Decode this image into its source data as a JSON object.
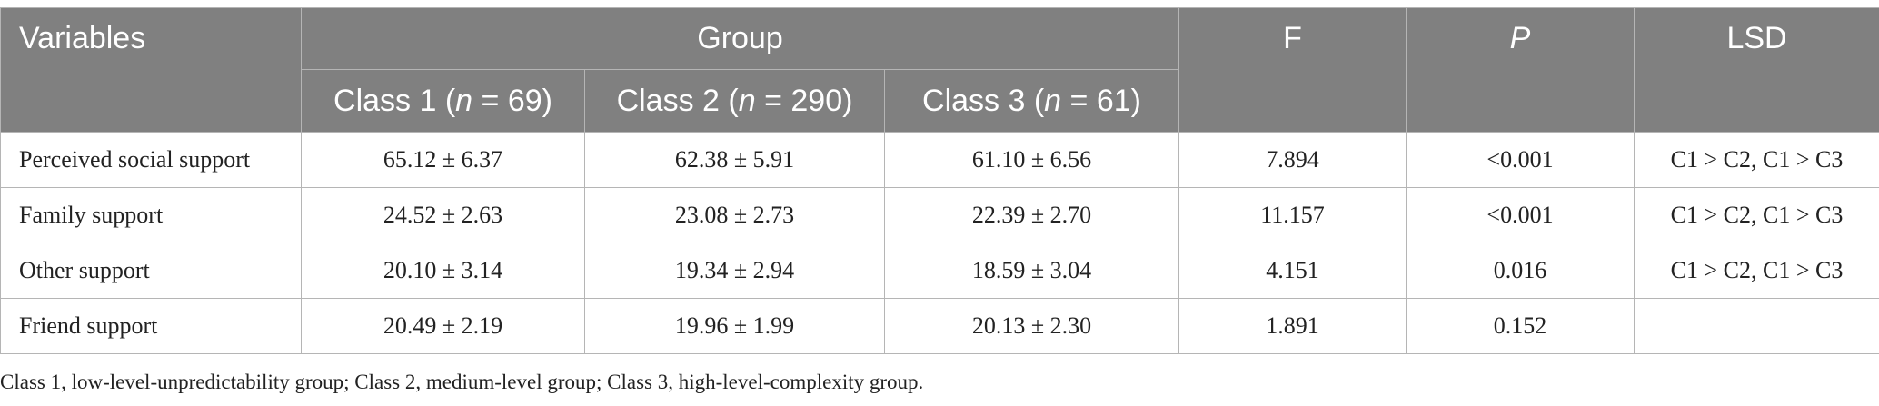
{
  "table": {
    "headers": {
      "variables": "Variables",
      "group": "Group",
      "f": "F",
      "p": "P",
      "lsd": "LSD",
      "classes": [
        {
          "pre": "Class 1 (",
          "n": "n",
          "post": " = 69)"
        },
        {
          "pre": "Class 2 (",
          "n": "n",
          "post": " = 290)"
        },
        {
          "pre": "Class 3 (",
          "n": "n",
          "post": " = 61)"
        }
      ]
    },
    "rows": [
      {
        "variable": "Perceived social support",
        "class1": "65.12 ± 6.37",
        "class2": "62.38 ± 5.91",
        "class3": "61.10 ± 6.56",
        "f": "7.894",
        "p": "<0.001",
        "lsd": "C1 > C2, C1 > C3"
      },
      {
        "variable": "Family support",
        "class1": "24.52 ± 2.63",
        "class2": "23.08 ± 2.73",
        "class3": "22.39 ± 2.70",
        "f": "11.157",
        "p": "<0.001",
        "lsd": "C1 > C2, C1 > C3"
      },
      {
        "variable": "Other support",
        "class1": "20.10 ± 3.14",
        "class2": "19.34 ± 2.94",
        "class3": "18.59 ± 3.04",
        "f": "4.151",
        "p": "0.016",
        "lsd": "C1 > C2, C1 > C3"
      },
      {
        "variable": "Friend support",
        "class1": "20.49 ± 2.19",
        "class2": "19.96 ± 1.99",
        "class3": "20.13 ± 2.30",
        "f": "1.891",
        "p": "0.152",
        "lsd": ""
      }
    ]
  },
  "footnote": "Class 1, low-level-unpredictability group; Class 2, medium-level group; Class 3, high-level-complexity group."
}
